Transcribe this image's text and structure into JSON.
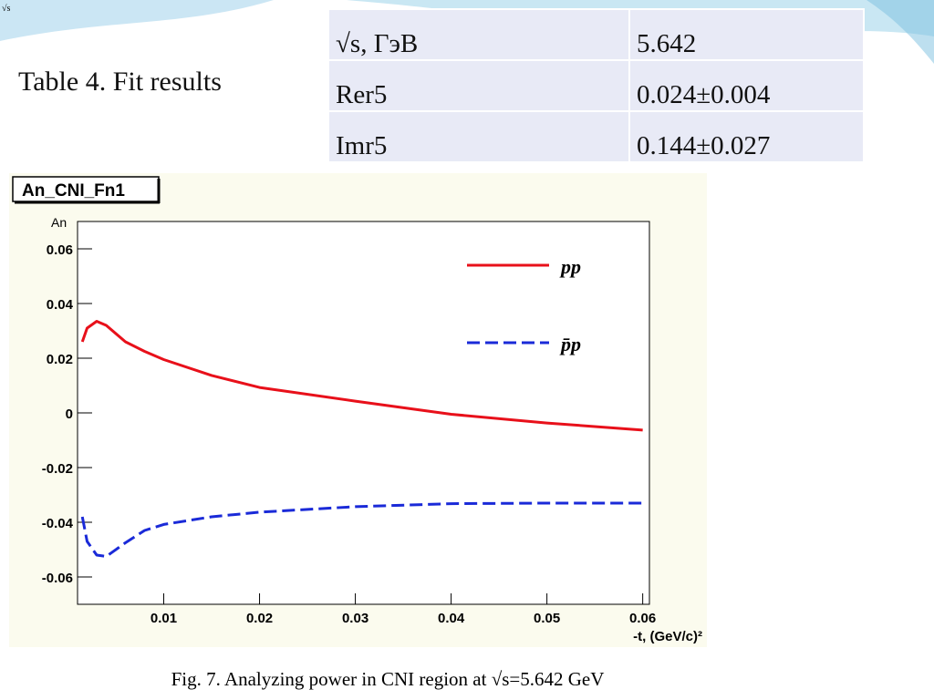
{
  "corner_icon": "√s",
  "heading": "Table 4. Fit results",
  "table": {
    "rows": [
      [
        "√s, ГэВ",
        "5.642"
      ],
      [
        "Rer5",
        "0.024±0.004"
      ],
      [
        "Imr5",
        "0.144±0.027"
      ]
    ]
  },
  "chart_data": {
    "type": "line",
    "title": "An_CNI_Fn1",
    "y_label": "An",
    "x_label": "-t, (GeV/c)²",
    "x": [
      0.0015,
      0.002,
      0.003,
      0.004,
      0.006,
      0.008,
      0.01,
      0.015,
      0.02,
      0.03,
      0.04,
      0.05,
      0.06
    ],
    "series": [
      {
        "name": "pp",
        "color": "#e8101a",
        "dash": false,
        "values": [
          0.026,
          0.031,
          0.0335,
          0.032,
          0.026,
          0.0225,
          0.0195,
          0.0137,
          0.0093,
          0.0043,
          -0.0005,
          -0.0037,
          -0.0063
        ]
      },
      {
        "name": "p̄p",
        "color": "#1a2ad8",
        "dash": true,
        "values": [
          -0.038,
          -0.047,
          -0.052,
          -0.0525,
          -0.0475,
          -0.043,
          -0.0408,
          -0.038,
          -0.0363,
          -0.0343,
          -0.0332,
          -0.033,
          -0.033
        ]
      }
    ],
    "xlim": [
      0.001,
      0.0607
    ],
    "ylim": [
      -0.07,
      0.07
    ],
    "xticks": [
      0.01,
      0.02,
      0.03,
      0.04,
      0.05,
      0.06
    ],
    "yticks": [
      0.06,
      0.04,
      0.02,
      0,
      -0.02,
      -0.04,
      -0.06
    ]
  },
  "caption": "Fig. 7. Analyzing power in CNI region at √s=5.642 GeV"
}
